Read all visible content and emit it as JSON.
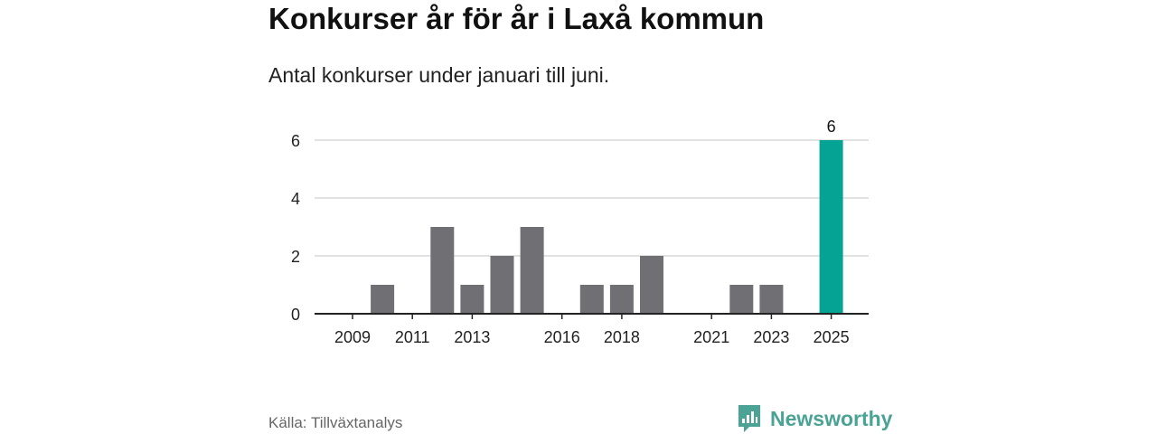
{
  "header": {
    "title": "Konkurser år för år i Laxå kommun",
    "subtitle": "Antal konkurser under januari till juni."
  },
  "footer": {
    "source": "Källa: Tillväxtanalys",
    "brand": "Newsworthy"
  },
  "colors": {
    "bar": "#706f74",
    "highlight": "#04a393",
    "grid": "#d9d9d9",
    "axis": "#222222",
    "brand": "#4aa394"
  },
  "chart_data": {
    "type": "bar",
    "categories": [
      "2009",
      "2010",
      "2011",
      "2012",
      "2013",
      "2014",
      "2015",
      "2016",
      "2017",
      "2018",
      "2019",
      "2020",
      "2021",
      "2022",
      "2023",
      "2024",
      "2025"
    ],
    "values": [
      0,
      1,
      0,
      3,
      1,
      2,
      3,
      0,
      1,
      1,
      2,
      0,
      0,
      1,
      1,
      0,
      6
    ],
    "highlight_index": 16,
    "x_tick_labels": [
      "2009",
      "2011",
      "2013",
      "2016",
      "2018",
      "2021",
      "2023",
      "2025"
    ],
    "y_ticks": [
      0,
      2,
      4,
      6
    ],
    "ylim": [
      0,
      6
    ],
    "data_labels": [
      {
        "category": "2025",
        "label": "6"
      }
    ],
    "grid": true,
    "legend": "none"
  }
}
